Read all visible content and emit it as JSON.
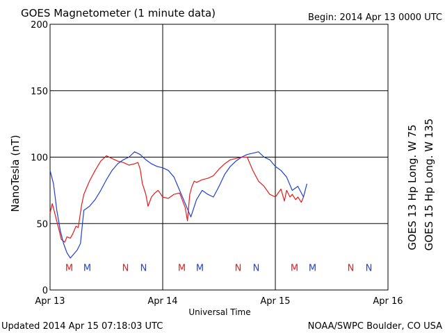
{
  "header": {
    "title": "GOES Magnetometer (1 minute data)",
    "begin": "Begin:  2014 Apr 13 0000 UTC"
  },
  "footer": {
    "updated": "Updated 2014 Apr 15 07:18:03 UTC",
    "source": "NOAA/SWPC Boulder, CO USA"
  },
  "colors": {
    "goes13": "#e41a1c",
    "goes15": "#1f3fd6",
    "grid": "#000000",
    "background": "#ffffff"
  },
  "chart_data": {
    "type": "line",
    "title": "GOES Magnetometer (1 minute data)",
    "xlabel": "Universal Time",
    "ylabel": "NanoTesla (nT)",
    "xlim": [
      0,
      3
    ],
    "ylim": [
      0,
      200
    ],
    "x_ticks": [
      {
        "value": 0,
        "label": "Apr 13"
      },
      {
        "value": 1,
        "label": "Apr 14"
      },
      {
        "value": 2,
        "label": "Apr 15"
      },
      {
        "value": 3,
        "label": "Apr 16"
      }
    ],
    "y_ticks": [
      {
        "value": 0,
        "label": "0"
      },
      {
        "value": 50,
        "label": "50"
      },
      {
        "value": 100,
        "label": "100"
      },
      {
        "value": 150,
        "label": "150"
      },
      {
        "value": 200,
        "label": "200"
      }
    ],
    "grid": true,
    "series": [
      {
        "name": "GOES 13 Hp  Long. W 75",
        "color": "#e41a1c",
        "x": [
          0,
          0.02,
          0.05,
          0.08,
          0.1,
          0.13,
          0.15,
          0.18,
          0.2,
          0.23,
          0.25,
          0.28,
          0.3,
          0.32,
          0.35,
          0.4,
          0.45,
          0.5,
          0.55,
          0.6,
          0.65,
          0.7,
          0.75,
          0.78,
          0.8,
          0.82,
          0.85,
          0.87,
          0.9,
          0.93,
          0.96,
          1,
          1.05,
          1.1,
          1.15,
          1.2,
          1.22,
          1.24,
          1.26,
          1.28,
          1.3,
          1.35,
          1.4,
          1.45,
          1.5,
          1.55,
          1.6,
          1.65,
          1.7,
          1.75,
          1.8,
          1.85,
          1.9,
          1.95,
          2,
          2.05,
          2.08,
          2.1,
          2.13,
          2.15,
          2.18,
          2.2,
          2.23,
          2.25
        ],
        "y": [
          58,
          65,
          55,
          45,
          38,
          36,
          40,
          39,
          42,
          48,
          47,
          64,
          72,
          76,
          82,
          90,
          97,
          101,
          99,
          97,
          96,
          94,
          95,
          96,
          91,
          80,
          72,
          63,
          70,
          73,
          75,
          70,
          69,
          72,
          73,
          62,
          52,
          72,
          78,
          82,
          81,
          83,
          84,
          86,
          91,
          95,
          98,
          99,
          100,
          100,
          90,
          82,
          78,
          72,
          70,
          76,
          67,
          75,
          70,
          72,
          68,
          70,
          66,
          70
        ]
      },
      {
        "name": "GOES 15 Hp  Long. W 135",
        "color": "#1f3fd6",
        "x": [
          0,
          0.03,
          0.06,
          0.09,
          0.12,
          0.15,
          0.18,
          0.21,
          0.24,
          0.27,
          0.3,
          0.35,
          0.4,
          0.45,
          0.5,
          0.55,
          0.6,
          0.65,
          0.7,
          0.75,
          0.8,
          0.85,
          0.9,
          0.95,
          1,
          1.05,
          1.1,
          1.15,
          1.2,
          1.25,
          1.3,
          1.35,
          1.4,
          1.45,
          1.5,
          1.55,
          1.6,
          1.65,
          1.7,
          1.75,
          1.8,
          1.85,
          1.9,
          1.95,
          2,
          2.05,
          2.1,
          2.15,
          2.2,
          2.25,
          2.28
        ],
        "y": [
          90,
          80,
          60,
          45,
          35,
          28,
          24,
          27,
          30,
          35,
          60,
          63,
          68,
          75,
          83,
          90,
          95,
          98,
          100,
          104,
          102,
          98,
          95,
          93,
          92,
          90,
          85,
          75,
          65,
          55,
          68,
          75,
          72,
          70,
          78,
          87,
          93,
          97,
          100,
          102,
          103,
          104,
          100,
          98,
          93,
          90,
          85,
          75,
          78,
          70,
          80
        ]
      }
    ],
    "markers": [
      {
        "x": 0.17,
        "label": "M",
        "series": 0
      },
      {
        "x": 0.33,
        "label": "M",
        "series": 1
      },
      {
        "x": 0.67,
        "label": "N",
        "series": 0
      },
      {
        "x": 0.83,
        "label": "N",
        "series": 1
      },
      {
        "x": 1.17,
        "label": "M",
        "series": 0
      },
      {
        "x": 1.33,
        "label": "M",
        "series": 1
      },
      {
        "x": 1.67,
        "label": "N",
        "series": 0
      },
      {
        "x": 1.83,
        "label": "N",
        "series": 1
      },
      {
        "x": 2.17,
        "label": "M",
        "series": 0
      },
      {
        "x": 2.33,
        "label": "M",
        "series": 1
      },
      {
        "x": 2.67,
        "label": "N",
        "series": 0
      },
      {
        "x": 2.83,
        "label": "N",
        "series": 1
      }
    ],
    "marker_y": 17
  }
}
